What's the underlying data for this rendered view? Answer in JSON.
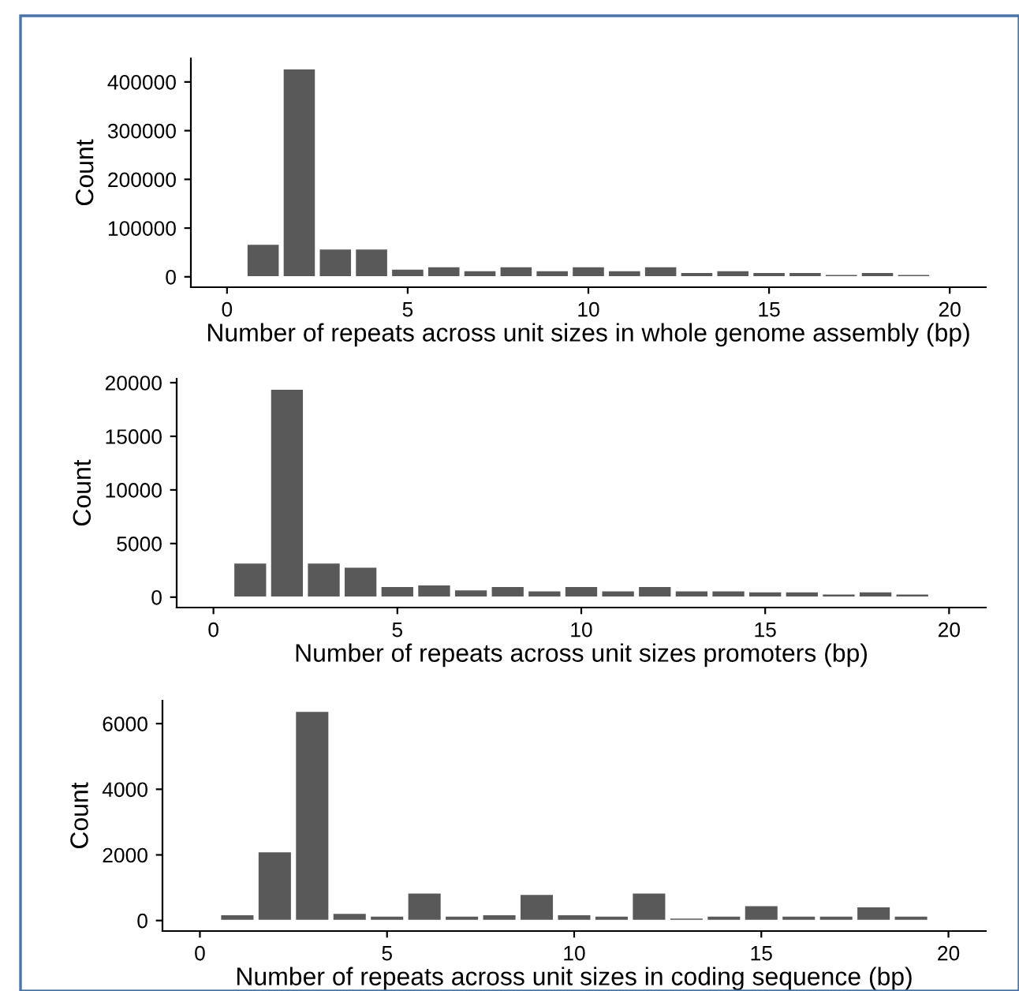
{
  "chart_data": [
    {
      "type": "bar",
      "xlabel": "Number of repeats across unit sizes in whole genome assembly (bp)",
      "ylabel": "Count",
      "x": [
        1,
        2,
        3,
        4,
        5,
        6,
        7,
        8,
        9,
        10,
        11,
        12,
        13,
        14,
        15,
        16,
        17,
        18,
        19
      ],
      "series": [
        {
          "color": "#595959",
          "values": [
            67000,
            427000,
            57500,
            57500,
            16000,
            21000,
            13000,
            21000,
            13000,
            21000,
            13000,
            21000,
            9000,
            13000,
            9000,
            9000,
            5000,
            9000,
            5000
          ]
        }
      ],
      "xlim": [
        -1,
        21
      ],
      "xticks": [
        0,
        5,
        10,
        15,
        20
      ],
      "ylim": [
        -21350,
        448350
      ],
      "yticks": [
        0,
        100000,
        200000,
        300000,
        400000
      ],
      "grid": false
    },
    {
      "type": "bar",
      "xlabel": "Number of repeats across unit sizes promoters (bp)",
      "ylabel": "Count",
      "x": [
        1,
        2,
        3,
        4,
        5,
        6,
        7,
        8,
        9,
        10,
        11,
        12,
        13,
        14,
        15,
        16,
        17,
        18,
        19
      ],
      "series": [
        {
          "color": "#595959",
          "values": [
            3200,
            19400,
            3200,
            2800,
            1000,
            1150,
            700,
            1000,
            600,
            1000,
            600,
            1000,
            600,
            600,
            500,
            500,
            300,
            500,
            300
          ]
        }
      ],
      "xlim": [
        -1,
        21
      ],
      "xticks": [
        0,
        5,
        10,
        15,
        20
      ],
      "ylim": [
        -970,
        20370
      ],
      "yticks": [
        0,
        5000,
        10000,
        15000,
        20000
      ],
      "grid": false
    },
    {
      "type": "bar",
      "xlabel": "Number of repeats across unit sizes in coding sequence (bp)",
      "ylabel": "Count",
      "x": [
        1,
        2,
        3,
        4,
        5,
        6,
        7,
        8,
        9,
        10,
        11,
        12,
        13,
        14,
        15,
        16,
        17,
        18,
        19
      ],
      "series": [
        {
          "color": "#595959",
          "values": [
            180,
            2100,
            6380,
            220,
            140,
            840,
            140,
            180,
            800,
            180,
            140,
            840,
            80,
            140,
            460,
            140,
            140,
            420,
            140
          ]
        }
      ],
      "xlim": [
        -1,
        21
      ],
      "xticks": [
        0,
        5,
        10,
        15,
        20
      ],
      "ylim": [
        -320,
        6700
      ],
      "yticks": [
        0,
        2000,
        4000,
        6000
      ],
      "grid": false
    }
  ]
}
